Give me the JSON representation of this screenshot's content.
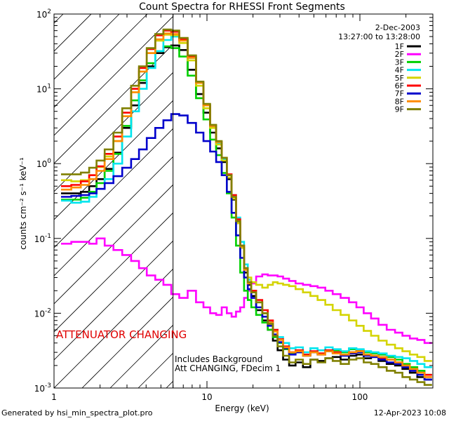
{
  "chart_data": {
    "type": "line",
    "title": "Count Spectra for RHESSI Front Segments",
    "xlabel": "Energy (keV)",
    "ylabel": "counts cm⁻² s⁻¹ keV⁻¹",
    "xscale": "log",
    "yscale": "log",
    "xlim": [
      1,
      300
    ],
    "ylim": [
      0.001,
      100
    ],
    "x_tick_labels": [
      {
        "value": 1,
        "label": "1"
      },
      {
        "value": 10,
        "label": "10"
      },
      {
        "value": 100,
        "label": "100"
      }
    ],
    "y_tick_labels": [
      {
        "value": 0.001,
        "mant": "10",
        "exp": "-3"
      },
      {
        "value": 0.01,
        "mant": "10",
        "exp": "-2"
      },
      {
        "value": 0.1,
        "mant": "10",
        "exp": "-1"
      },
      {
        "value": 1,
        "mant": "10",
        "exp": "0"
      },
      {
        "value": 10,
        "mant": "10",
        "exp": "1"
      },
      {
        "value": 100,
        "mant": "10",
        "exp": "2"
      }
    ],
    "date": "2-Dec-2003",
    "time_range": "13:27:00 to 13:28:00",
    "legend_position": "top-right",
    "shaded_region": {
      "x_from": 1,
      "x_to": 6,
      "style": "diagonal hatch"
    },
    "vertical_line_x": 6,
    "annotations": {
      "attenuator": "ATTENUATOR CHANGING",
      "background": "Includes Background",
      "att_status": "Att CHANGING, FDecim 1"
    },
    "energy_bins_keV": [
      1.2,
      1.4,
      1.6,
      1.8,
      2.0,
      2.3,
      2.6,
      3.0,
      3.4,
      3.8,
      4.3,
      4.9,
      5.5,
      6.2,
      7.0,
      8.0,
      9.0,
      10.0,
      11.0,
      12.0,
      13.0,
      14.0,
      15.0,
      16.0,
      17.0,
      18.0,
      19.0,
      20.0,
      22.0,
      24.0,
      26.0,
      28.0,
      30.0,
      33.0,
      36.0,
      40.0,
      45.0,
      50.0,
      56.0,
      63.0,
      70.0,
      80.0,
      90.0,
      100.0,
      112.0,
      125.0,
      140.0,
      160.0,
      180.0,
      200.0,
      225.0,
      250.0,
      280.0
    ],
    "series": [
      {
        "name": "1F",
        "color": "#000000",
        "values": [
          0.4,
          0.4,
          0.42,
          0.5,
          0.62,
          0.85,
          1.4,
          3.0,
          6.0,
          12.0,
          20.0,
          30.0,
          36.0,
          38.0,
          33.0,
          18.0,
          8.5,
          4.8,
          2.6,
          1.6,
          1.05,
          0.62,
          0.33,
          0.16,
          0.075,
          0.035,
          0.024,
          0.017,
          0.011,
          0.008,
          0.006,
          0.0043,
          0.0032,
          0.0024,
          0.002,
          0.0022,
          0.0019,
          0.0024,
          0.0023,
          0.0025,
          0.0026,
          0.0024,
          0.0027,
          0.0028,
          0.0025,
          0.0026,
          0.0023,
          0.0021,
          0.002,
          0.0018,
          0.0016,
          0.0014,
          0.0013
        ]
      },
      {
        "name": "2F",
        "color": "#ff00ff",
        "values": [
          0.085,
          0.09,
          0.09,
          0.085,
          0.1,
          0.08,
          0.07,
          0.06,
          0.05,
          0.04,
          0.032,
          0.028,
          0.024,
          0.018,
          0.016,
          0.02,
          0.014,
          0.012,
          0.01,
          0.0095,
          0.012,
          0.01,
          0.009,
          0.0105,
          0.012,
          0.016,
          0.02,
          0.025,
          0.031,
          0.033,
          0.032,
          0.032,
          0.031,
          0.029,
          0.027,
          0.025,
          0.024,
          0.023,
          0.022,
          0.02,
          0.018,
          0.016,
          0.014,
          0.012,
          0.01,
          0.0085,
          0.007,
          0.006,
          0.0055,
          0.005,
          0.0046,
          0.0044,
          0.004
        ]
      },
      {
        "name": "3F",
        "color": "#00d000",
        "values": [
          0.33,
          0.33,
          0.35,
          0.42,
          0.55,
          0.8,
          1.35,
          3.2,
          7.0,
          13.0,
          22.0,
          32.0,
          37.0,
          35.0,
          27.0,
          15.0,
          7.5,
          3.9,
          2.1,
          1.3,
          0.75,
          0.4,
          0.19,
          0.08,
          0.035,
          0.02,
          0.015,
          0.012,
          0.0095,
          0.0075,
          0.006,
          0.0048,
          0.004,
          0.0033,
          0.0029,
          0.003,
          0.0028,
          0.003,
          0.0029,
          0.0031,
          0.0032,
          0.003,
          0.0033,
          0.0032,
          0.003,
          0.0029,
          0.0028,
          0.0026,
          0.0024,
          0.0021,
          0.0019,
          0.0017,
          0.0015
        ]
      },
      {
        "name": "4F",
        "color": "#00e5ee",
        "values": [
          0.32,
          0.3,
          0.31,
          0.36,
          0.46,
          0.62,
          1.0,
          2.3,
          5.0,
          10.0,
          19.0,
          32.0,
          45.0,
          50.0,
          45.0,
          26.0,
          12.0,
          6.0,
          3.1,
          1.85,
          1.15,
          0.7,
          0.38,
          0.19,
          0.09,
          0.045,
          0.028,
          0.02,
          0.014,
          0.01,
          0.0077,
          0.006,
          0.0048,
          0.004,
          0.0034,
          0.0035,
          0.003,
          0.0034,
          0.0032,
          0.0035,
          0.0033,
          0.0031,
          0.0034,
          0.0033,
          0.0031,
          0.003,
          0.0029,
          0.0027,
          0.0026,
          0.0025,
          0.0023,
          0.0021,
          0.0019
        ]
      },
      {
        "name": "5F",
        "color": "#d4d400",
        "values": [
          0.6,
          0.58,
          0.6,
          0.7,
          0.9,
          1.25,
          2.0,
          4.3,
          9.0,
          17.0,
          30.0,
          44.0,
          53.0,
          52.0,
          41.0,
          24.0,
          11.0,
          5.5,
          3.0,
          1.8,
          1.1,
          0.65,
          0.34,
          0.16,
          0.075,
          0.04,
          0.03,
          0.026,
          0.024,
          0.022,
          0.024,
          0.026,
          0.025,
          0.024,
          0.023,
          0.021,
          0.019,
          0.017,
          0.015,
          0.013,
          0.011,
          0.0095,
          0.008,
          0.0068,
          0.0058,
          0.005,
          0.0043,
          0.0038,
          0.0034,
          0.0031,
          0.0028,
          0.0026,
          0.0023
        ]
      },
      {
        "name": "6F",
        "color": "#ff0000",
        "values": [
          0.5,
          0.52,
          0.58,
          0.7,
          0.92,
          1.35,
          2.3,
          4.8,
          10.0,
          19.0,
          34.0,
          52.0,
          60.0,
          58.0,
          46.0,
          27.0,
          12.0,
          6.0,
          3.2,
          1.95,
          1.2,
          0.72,
          0.38,
          0.18,
          0.08,
          0.04,
          0.026,
          0.02,
          0.015,
          0.011,
          0.008,
          0.006,
          0.0045,
          0.0036,
          0.003,
          0.0032,
          0.0028,
          0.0031,
          0.0029,
          0.0032,
          0.003,
          0.0028,
          0.003,
          0.0031,
          0.0028,
          0.0027,
          0.0025,
          0.0024,
          0.0022,
          0.002,
          0.0018,
          0.0016,
          0.0015
        ]
      },
      {
        "name": "7F",
        "color": "#0000cc",
        "values": [
          0.36,
          0.37,
          0.38,
          0.4,
          0.46,
          0.55,
          0.68,
          0.88,
          1.15,
          1.55,
          2.2,
          3.0,
          3.8,
          4.6,
          4.4,
          3.5,
          2.6,
          2.0,
          1.45,
          1.05,
          0.7,
          0.42,
          0.22,
          0.11,
          0.055,
          0.03,
          0.021,
          0.016,
          0.012,
          0.009,
          0.0068,
          0.0052,
          0.0041,
          0.0034,
          0.0028,
          0.003,
          0.0027,
          0.003,
          0.0028,
          0.0031,
          0.0029,
          0.0027,
          0.0029,
          0.003,
          0.0027,
          0.0026,
          0.0024,
          0.0022,
          0.0021,
          0.0019,
          0.0017,
          0.0015,
          0.0013
        ]
      },
      {
        "name": "8F",
        "color": "#ff8c00",
        "values": [
          0.45,
          0.48,
          0.52,
          0.62,
          0.8,
          1.15,
          2.0,
          4.3,
          9.0,
          17.0,
          30.0,
          46.0,
          55.0,
          54.0,
          44.0,
          26.0,
          12.0,
          6.0,
          3.2,
          1.95,
          1.2,
          0.7,
          0.36,
          0.17,
          0.078,
          0.038,
          0.025,
          0.019,
          0.014,
          0.01,
          0.0075,
          0.0057,
          0.0044,
          0.0035,
          0.003,
          0.0031,
          0.0027,
          0.003,
          0.0028,
          0.0031,
          0.0029,
          0.0028,
          0.003,
          0.0031,
          0.0028,
          0.0027,
          0.0026,
          0.0024,
          0.0022,
          0.002,
          0.0018,
          0.0016,
          0.0014
        ]
      },
      {
        "name": "9F",
        "color": "#808000",
        "values": [
          0.72,
          0.72,
          0.76,
          0.88,
          1.1,
          1.55,
          2.6,
          5.5,
          11.0,
          20.0,
          35.0,
          54.0,
          62.0,
          60.0,
          48.0,
          28.0,
          12.5,
          6.3,
          3.3,
          2.0,
          1.2,
          0.7,
          0.36,
          0.17,
          0.08,
          0.04,
          0.026,
          0.019,
          0.014,
          0.01,
          0.0072,
          0.005,
          0.0036,
          0.0027,
          0.0022,
          0.0024,
          0.0021,
          0.0024,
          0.0022,
          0.0025,
          0.0023,
          0.0021,
          0.0024,
          0.0025,
          0.0022,
          0.0021,
          0.0019,
          0.0017,
          0.0016,
          0.0014,
          0.0013,
          0.0012,
          0.0011
        ]
      }
    ]
  },
  "footer": {
    "generated_by": "Generated by hsi_min_spectra_plot.pro",
    "timestamp": "12-Apr-2023 10:08"
  }
}
